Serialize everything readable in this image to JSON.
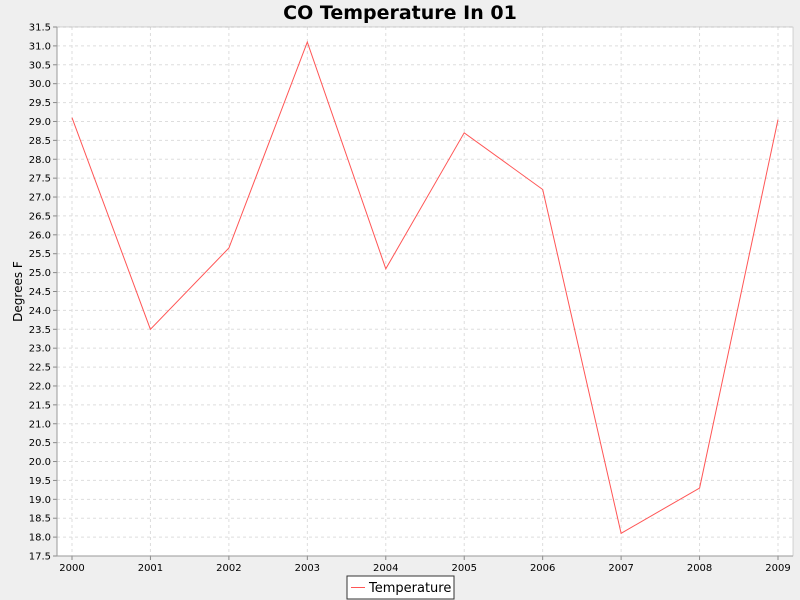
{
  "colors": {
    "series": "#ff5555",
    "plot_background": "#ffffff",
    "page_background": "#efefef",
    "gridline": "#dddddd"
  },
  "chart_data": {
    "type": "line",
    "title": "CO Temperature In 01",
    "xlabel": "",
    "ylabel": "Degrees F",
    "x": [
      "2000",
      "2001",
      "2002",
      "2003",
      "2004",
      "2005",
      "2006",
      "2007",
      "2008",
      "2009"
    ],
    "series": [
      {
        "name": "Temperature",
        "values": [
          29.1,
          23.5,
          25.65,
          31.1,
          25.1,
          28.7,
          27.2,
          18.1,
          19.3,
          29.05
        ]
      }
    ],
    "ylim": [
      17.5,
      31.5
    ],
    "yticks": [
      "17.5",
      "18.0",
      "18.5",
      "19.0",
      "19.5",
      "20.0",
      "20.5",
      "21.0",
      "21.5",
      "22.0",
      "22.5",
      "23.0",
      "23.5",
      "24.0",
      "24.5",
      "25.0",
      "25.5",
      "26.0",
      "26.5",
      "27.0",
      "27.5",
      "28.0",
      "28.5",
      "29.0",
      "29.5",
      "30.0",
      "30.5",
      "31.0",
      "31.5"
    ],
    "grid": true,
    "legend_position": "bottom-center"
  }
}
